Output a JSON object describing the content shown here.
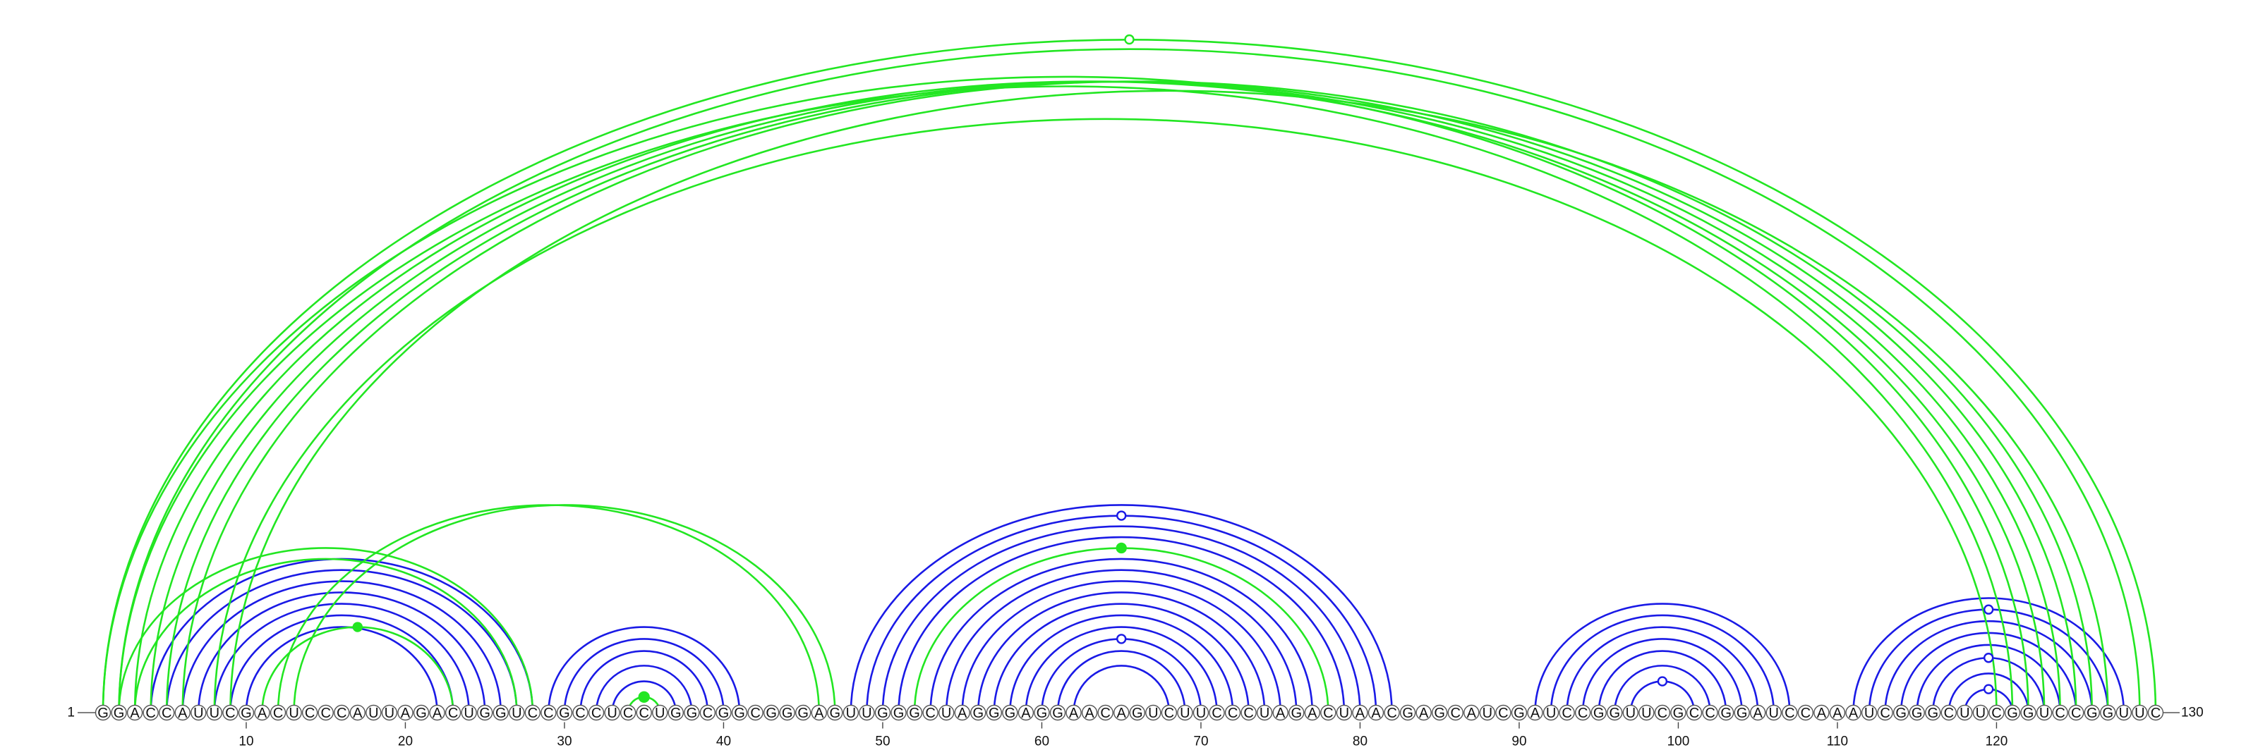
{
  "sequence": "GGACCAUUCGACUCCCAUUAGACUGGUCCGCCUCCUGGCGGCGGGAGUUGGGCUAGGGAGGAACAGUCUUCCCUAGACUAACGAGCAUCGAUCCGGUUCGCCGGAUCCAAAUCGGGCUUCGGUCCGGUUC",
  "start_label": "1",
  "end_label": "130",
  "tick_labels": [
    "10",
    "20",
    "30",
    "40",
    "50",
    "60",
    "70",
    "80",
    "90",
    "100",
    "110",
    "120"
  ],
  "colors": {
    "blue": "#1a1ae6",
    "green": "#22e622",
    "backbone": "#555555"
  },
  "chart_data": {
    "type": "arc-diagram",
    "length": 130,
    "x_ticks": [
      10,
      20,
      30,
      40,
      50,
      60,
      70,
      80,
      90,
      100,
      110,
      120
    ],
    "blue_arcs": [
      [
        4,
        28
      ],
      [
        5,
        27
      ],
      [
        6,
        26
      ],
      [
        7,
        25
      ],
      [
        8,
        24
      ],
      [
        9,
        23
      ],
      [
        10,
        22
      ],
      [
        29,
        41
      ],
      [
        30,
        40
      ],
      [
        31,
        39
      ],
      [
        32,
        38
      ],
      [
        33,
        37
      ],
      [
        48,
        82
      ],
      [
        49,
        81
      ],
      [
        50,
        80
      ],
      [
        51,
        79
      ],
      [
        53,
        77
      ],
      [
        54,
        76
      ],
      [
        55,
        75
      ],
      [
        56,
        74
      ],
      [
        57,
        73
      ],
      [
        58,
        72
      ],
      [
        59,
        71
      ],
      [
        60,
        70
      ],
      [
        61,
        69
      ],
      [
        62,
        68
      ],
      [
        91,
        107
      ],
      [
        92,
        106
      ],
      [
        93,
        105
      ],
      [
        94,
        104
      ],
      [
        95,
        103
      ],
      [
        96,
        102
      ],
      [
        97,
        101
      ],
      [
        111,
        128
      ],
      [
        112,
        127
      ],
      [
        113,
        126
      ],
      [
        114,
        125
      ],
      [
        115,
        124
      ],
      [
        116,
        123
      ],
      [
        117,
        122
      ],
      [
        118,
        121
      ]
    ],
    "green_arcs": [
      [
        1,
        122
      ],
      [
        2,
        121
      ],
      [
        3,
        123
      ],
      [
        4,
        124
      ],
      [
        5,
        125
      ],
      [
        6,
        126
      ],
      [
        8,
        120
      ],
      [
        9,
        127
      ],
      [
        1,
        130
      ],
      [
        2,
        129
      ],
      [
        2,
        28
      ],
      [
        3,
        27
      ],
      [
        12,
        46
      ],
      [
        13,
        47
      ],
      [
        11,
        23
      ],
      [
        52,
        78
      ],
      [
        34,
        36
      ]
    ]
  }
}
